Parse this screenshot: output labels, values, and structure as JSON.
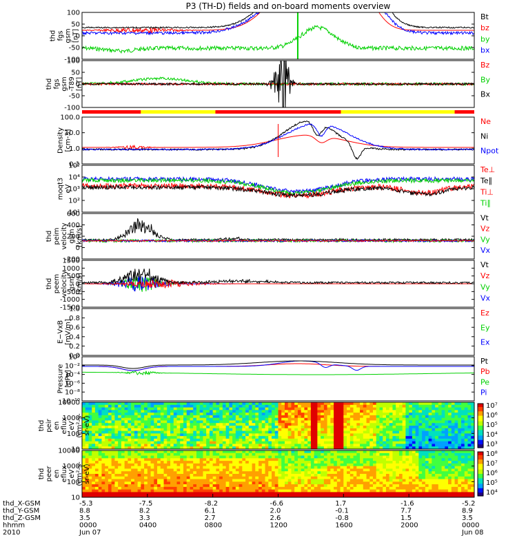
{
  "chart_data": {
    "type": "line",
    "title": "P3 (TH-D) fields and on-board moments overview",
    "colors": {
      "black": "#000000",
      "red": "#ff0000",
      "green": "#00d000",
      "blue": "#0000ff",
      "yellow": "#ffff00"
    },
    "panels": [
      {
        "ylabel": "thd\nfgs\ngsm\n[nT]",
        "yticks": [
          "100",
          "50",
          "0",
          "-50",
          "-100"
        ],
        "legend": [
          {
            "name": "Bt",
            "color": "#000000"
          },
          {
            "name": "bz",
            "color": "#ff0000"
          },
          {
            "name": "by",
            "color": "#00d000"
          },
          {
            "name": "bx",
            "color": "#0000ff"
          }
        ]
      },
      {
        "ylabel": "thd\nfgs\ngsm\n-T89\n[nT]",
        "yticks": [
          "100",
          "50",
          "0",
          "-50",
          "-100"
        ],
        "legend": [
          {
            "name": "Bz",
            "color": "#ff0000"
          },
          {
            "name": "By",
            "color": "#00d000"
          },
          {
            "name": "Bx",
            "color": "#000000"
          }
        ]
      },
      {
        "ylabel": "Density\n[cm-3]",
        "yticks": [
          "100.0",
          "10.0",
          "1.0",
          "0.1"
        ],
        "legend": [
          {
            "name": "Ne",
            "color": "#ff0000"
          },
          {
            "name": "Ni",
            "color": "#000000"
          },
          {
            "name": "Npot",
            "color": "#0000ff"
          }
        ]
      },
      {
        "ylabel": "moqt3\neV",
        "yticks": [
          "10⁵",
          "10⁴",
          "10³",
          "10²",
          "10¹"
        ],
        "legend": [
          {
            "name": "Te⊥",
            "color": "#ff0000"
          },
          {
            "name": "Te∥",
            "color": "#000000"
          },
          {
            "name": "Ti⊥",
            "color": "#ff0000"
          },
          {
            "name": "Ti∥",
            "color": "#00d000"
          }
        ]
      },
      {
        "ylabel": "thd\npeim\nvelocity\ngsm\n[km/s]",
        "yticks": [
          "600",
          "400",
          "200",
          "0",
          "-200"
        ],
        "legend": [
          {
            "name": "Vt",
            "color": "#000000"
          },
          {
            "name": "Vz",
            "color": "#ff0000"
          },
          {
            "name": "Vy",
            "color": "#00d000"
          },
          {
            "name": "Vx",
            "color": "#0000ff"
          }
        ]
      },
      {
        "ylabel": "thd\npeem\nvelocity\ngsm\n[km/s]",
        "yticks": [
          "1500",
          "1000",
          "500",
          "0",
          "-500",
          "-1000",
          "-1500"
        ],
        "legend": [
          {
            "name": "Vt",
            "color": "#000000"
          },
          {
            "name": "Vz",
            "color": "#ff0000"
          },
          {
            "name": "Vy",
            "color": "#00d000"
          },
          {
            "name": "Vx",
            "color": "#0000ff"
          }
        ]
      },
      {
        "ylabel": "E−VxB\n[mV/m]",
        "yticks": [
          "1.0",
          "0.8",
          "0.6",
          "0.4",
          "0.2",
          "0.0"
        ],
        "legend": [
          {
            "name": "Ez",
            "color": "#ff0000"
          },
          {
            "name": "Ey",
            "color": "#00d000"
          },
          {
            "name": "Ex",
            "color": "#0000ff"
          }
        ]
      },
      {
        "ylabel": "Pressure\n[nPa]",
        "yticks": [
          "10⁰",
          "10⁻²",
          "10⁻⁴",
          "10⁻⁶",
          "10⁻⁸",
          "10⁻¹⁰"
        ],
        "legend": [
          {
            "name": "Pt",
            "color": "#000000"
          },
          {
            "name": "Pb",
            "color": "#ff0000"
          },
          {
            "name": "Pe",
            "color": "#00d000"
          },
          {
            "name": "Pi",
            "color": "#0000ff"
          }
        ]
      },
      {
        "ylabel": "thd\npeir\nen\neflux\neV\n(cm²-s-\nsr-eV)",
        "yticks": [
          "10000",
          "1000",
          "100",
          "10"
        ],
        "colorbar": [
          "10⁷",
          "10⁶",
          "10⁵",
          "10⁴",
          "10³"
        ]
      },
      {
        "ylabel": "thd\npeer\nen\neflux\neV\n(cm²-s-\nsr-eV)",
        "yticks": [
          "10000",
          "1000",
          "100",
          "10"
        ],
        "colorbar": [
          "10⁸",
          "10⁷",
          "10⁶",
          "10⁵",
          "10⁴"
        ]
      }
    ],
    "xaxis": {
      "row_labels": [
        "thd_X-GSM",
        "thd_Y-GSM",
        "thd_Z-GSM",
        "hhmm",
        "2010"
      ],
      "columns": [
        [
          "-5.3",
          "8.8",
          "3.5",
          "0000",
          "Jun 07"
        ],
        [
          "-7.5",
          "8.2",
          "3.3",
          "0400",
          ""
        ],
        [
          "-8.2",
          "6.1",
          "2.7",
          "0800",
          ""
        ],
        [
          "-6.6",
          "2.0",
          "2.6",
          "1200",
          ""
        ],
        [
          "1.7",
          "-0.1",
          "-0.8",
          "1600",
          ""
        ],
        [
          "-1.6",
          "7.7",
          "1.5",
          "2000",
          ""
        ],
        [
          "-5.2",
          "8.9",
          "3.5",
          "0000",
          "Jun 08"
        ]
      ]
    }
  }
}
